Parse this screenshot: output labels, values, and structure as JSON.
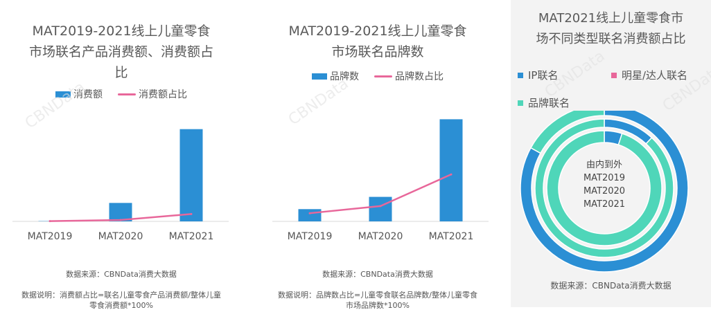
{
  "panel1": {
    "title": "MAT2019-2021线上儿童零食\n市场联名产品消费额、消费额占\n比",
    "legend_bar": "消费额",
    "legend_line": "消费额占比",
    "source": "数据来源：CBNData消费大数据",
    "note": "数据说明：消费额占比=联名儿童零食产品消费额/整体儿童\n零食消费额*100%"
  },
  "panel2": {
    "title": "MAT2019-2021线上儿童零食\n市场联名品牌数",
    "legend_bar": "品牌数",
    "legend_line": "品牌数占比",
    "source": "数据来源：CBNData消费大数据",
    "note": "数据说明：品牌数占比=儿童零食联名品牌数/整体儿童零食\n市场品牌数*100%"
  },
  "panel3": {
    "title": "MAT2021线上儿童零食市\n场不同类型联名消费额占比",
    "legend": [
      "IP联名",
      "明星/达人联名",
      "品牌联名"
    ],
    "center_text": [
      "由内到外",
      "MAT2019",
      "MAT2020",
      "MAT2021"
    ],
    "source": "数据来源：CBNData消费大数据"
  },
  "watermark": "CBNData",
  "colors": {
    "bar": "#2b8fd4",
    "line": "#e8679a",
    "ip": "#2b8fd4",
    "star": "#e8679a",
    "brand": "#4fd6b9"
  },
  "chart_data": [
    {
      "type": "bar",
      "categories": [
        "MAT2019",
        "MAT2020",
        "MAT2021"
      ],
      "series": [
        {
          "name": "消费额",
          "values": [
            0.3,
            20,
            100
          ]
        },
        {
          "name": "消费额占比",
          "type": "line",
          "values": [
            0.3,
            1.5,
            8
          ]
        }
      ],
      "ylim": [
        0,
        105
      ]
    },
    {
      "type": "bar",
      "categories": [
        "MAT2019",
        "MAT2020",
        "MAT2021"
      ],
      "series": [
        {
          "name": "品牌数",
          "values": [
            12,
            24,
            100
          ]
        },
        {
          "name": "品牌数占比",
          "type": "line",
          "values": [
            8,
            15,
            46
          ]
        }
      ],
      "ylim": [
        0,
        105
      ]
    },
    {
      "type": "pie",
      "categories": [
        "IP联名",
        "明星/达人联名",
        "品牌联名"
      ],
      "series": [
        {
          "name": "MAT2019",
          "values": [
            5,
            0,
            95
          ]
        },
        {
          "name": "MAT2020",
          "values": [
            12,
            0,
            88
          ]
        },
        {
          "name": "MAT2021",
          "values": [
            83,
            0,
            17
          ]
        }
      ]
    }
  ]
}
